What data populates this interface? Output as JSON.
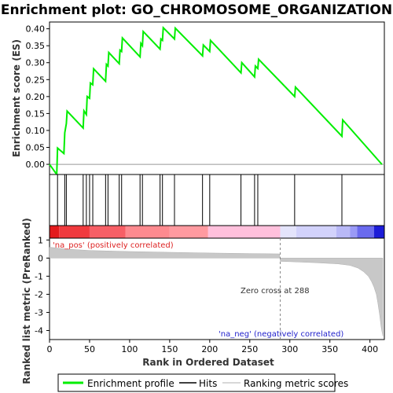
{
  "chart_data": {
    "type": "line",
    "title": "Enrichment plot: GO_CHROMOSOME_ORGANIZATION",
    "top_panel": {
      "ylabel": "Enrichment score (ES)",
      "ylim": [
        -0.03,
        0.42
      ],
      "yticks": [
        "0.00",
        "0.05",
        "0.10",
        "0.15",
        "0.20",
        "0.25",
        "0.30",
        "0.35",
        "0.40"
      ],
      "ytick_values": [
        0,
        0.05,
        0.1,
        0.15,
        0.2,
        0.25,
        0.3,
        0.35,
        0.4
      ],
      "series": [
        {
          "name": "Enrichment profile",
          "color": "#00ee00",
          "x": [
            0,
            9,
            10,
            18,
            19,
            21,
            22,
            42,
            43,
            46,
            47,
            50,
            51,
            54,
            55,
            70,
            71,
            73,
            74,
            87,
            88,
            90,
            91,
            113,
            114,
            116,
            117,
            138,
            139,
            141,
            142,
            156,
            157,
            191,
            192,
            200,
            201,
            239,
            240,
            256,
            257,
            260,
            261,
            306,
            307,
            365,
            366,
            415
          ],
          "y": [
            0.0,
            -0.03,
            0.048,
            0.032,
            0.093,
            0.12,
            0.157,
            0.107,
            0.158,
            0.147,
            0.2,
            0.195,
            0.24,
            0.235,
            0.282,
            0.245,
            0.295,
            0.29,
            0.33,
            0.297,
            0.337,
            0.333,
            0.373,
            0.317,
            0.357,
            0.35,
            0.392,
            0.34,
            0.37,
            0.366,
            0.403,
            0.37,
            0.402,
            0.32,
            0.352,
            0.333,
            0.366,
            0.27,
            0.3,
            0.258,
            0.29,
            0.283,
            0.31,
            0.2,
            0.228,
            0.083,
            0.131,
            0.0
          ]
        }
      ]
    },
    "hits_panel": {
      "hit_positions": [
        10,
        19,
        21,
        42,
        46,
        50,
        54,
        70,
        73,
        87,
        90,
        113,
        116,
        138,
        141,
        156,
        191,
        200,
        239,
        256,
        260,
        306,
        365
      ]
    },
    "colorbar": {
      "segments": [
        {
          "from": 0,
          "to": 12,
          "color": "#e31a1c"
        },
        {
          "from": 12,
          "to": 50,
          "color": "#f03a3e"
        },
        {
          "from": 50,
          "to": 95,
          "color": "#f75f66"
        },
        {
          "from": 95,
          "to": 150,
          "color": "#fd8a8f"
        },
        {
          "from": 150,
          "to": 198,
          "color": "#ff9aa0"
        },
        {
          "from": 198,
          "to": 288,
          "color": "#ffc0dc"
        },
        {
          "from": 288,
          "to": 308,
          "color": "#e4e4fb"
        },
        {
          "from": 308,
          "to": 358,
          "color": "#d2d2fb"
        },
        {
          "from": 358,
          "to": 375,
          "color": "#b9b9f7"
        },
        {
          "from": 375,
          "to": 384,
          "color": "#9a9af6"
        },
        {
          "from": 384,
          "to": 405,
          "color": "#6a6aee"
        },
        {
          "from": 405,
          "to": 418,
          "color": "#1c1cd8"
        }
      ]
    },
    "bottom_panel": {
      "ylabel": "Ranked list metric (PreRanked)",
      "xlabel": "Rank in Ordered Dataset",
      "ylim": [
        -4.5,
        1.1
      ],
      "yticks": [
        "1",
        "0",
        "-1",
        "-2",
        "-3",
        "-4"
      ],
      "ytick_values": [
        1,
        0,
        -1,
        -2,
        -3,
        -4
      ],
      "metric_x": [
        0,
        20,
        50,
        100,
        150,
        200,
        250,
        287,
        288,
        300,
        330,
        360,
        375,
        385,
        392,
        398,
        402,
        405,
        408,
        410,
        412,
        414,
        416
      ],
      "metric_y": [
        0.6,
        0.5,
        0.42,
        0.36,
        0.32,
        0.28,
        0.25,
        0.23,
        -0.18,
        -0.2,
        -0.25,
        -0.32,
        -0.4,
        -0.55,
        -0.75,
        -1.0,
        -1.3,
        -1.6,
        -2.0,
        -2.5,
        -3.1,
        -3.8,
        -4.3
      ],
      "zero_cross": 288,
      "zero_cross_label": "Zero cross at 288",
      "pos_label": "'na_pos' (positively correlated)",
      "neg_label": "'na_neg' (negatively correlated)",
      "pos_color": "#dd2222",
      "neg_color": "#2222cc"
    },
    "xlim": [
      0,
      418
    ],
    "xticks": [
      "0",
      "50",
      "100",
      "150",
      "200",
      "250",
      "300",
      "350",
      "400"
    ],
    "xtick_values": [
      0,
      50,
      100,
      150,
      200,
      250,
      300,
      350,
      400
    ]
  },
  "legend": {
    "items": [
      {
        "label": "Enrichment profile",
        "color": "#00ee00"
      },
      {
        "label": "Hits",
        "color": "#000000"
      },
      {
        "label": "Ranking metric scores",
        "color": "#cccccc"
      }
    ]
  }
}
